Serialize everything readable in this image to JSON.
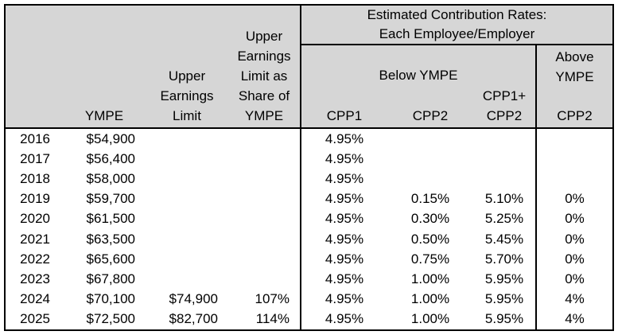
{
  "colors": {
    "header_background": "#d6d6d6",
    "border": "#000000",
    "text": "#000000",
    "row_background": "#ffffff"
  },
  "table": {
    "left_headers": {
      "year": "",
      "ympe": "YMPE",
      "upper_earnings_limit": "Upper\nEarnings\nLimit",
      "uel_share_of_ympe": "Upper\nEarnings\nLimit as\nShare of\nYMPE"
    },
    "rates_title": "Estimated Contribution Rates:\nEach Employee/Employer",
    "below_group_label": "Below YMPE",
    "below_columns": [
      "CPP1",
      "CPP2",
      "CPP1+\nCPP2"
    ],
    "above_group_label": "Above\nYMPE",
    "above_column": "CPP2",
    "rows": [
      {
        "year": "2016",
        "ympe": "$54,900",
        "upper_earnings_limit": "",
        "uel_share_of_ympe": "",
        "cpp1": "4.95%",
        "cpp2": "",
        "cpp1_plus_cpp2": "",
        "above_cpp2": ""
      },
      {
        "year": "2017",
        "ympe": "$56,400",
        "upper_earnings_limit": "",
        "uel_share_of_ympe": "",
        "cpp1": "4.95%",
        "cpp2": "",
        "cpp1_plus_cpp2": "",
        "above_cpp2": ""
      },
      {
        "year": "2018",
        "ympe": "$58,000",
        "upper_earnings_limit": "",
        "uel_share_of_ympe": "",
        "cpp1": "4.95%",
        "cpp2": "",
        "cpp1_plus_cpp2": "",
        "above_cpp2": ""
      },
      {
        "year": "2019",
        "ympe": "$59,700",
        "upper_earnings_limit": "",
        "uel_share_of_ympe": "",
        "cpp1": "4.95%",
        "cpp2": "0.15%",
        "cpp1_plus_cpp2": "5.10%",
        "above_cpp2": "0%"
      },
      {
        "year": "2020",
        "ympe": "$61,500",
        "upper_earnings_limit": "",
        "uel_share_of_ympe": "",
        "cpp1": "4.95%",
        "cpp2": "0.30%",
        "cpp1_plus_cpp2": "5.25%",
        "above_cpp2": "0%"
      },
      {
        "year": "2021",
        "ympe": "$63,500",
        "upper_earnings_limit": "",
        "uel_share_of_ympe": "",
        "cpp1": "4.95%",
        "cpp2": "0.50%",
        "cpp1_plus_cpp2": "5.45%",
        "above_cpp2": "0%"
      },
      {
        "year": "2022",
        "ympe": "$65,600",
        "upper_earnings_limit": "",
        "uel_share_of_ympe": "",
        "cpp1": "4.95%",
        "cpp2": "0.75%",
        "cpp1_plus_cpp2": "5.70%",
        "above_cpp2": "0%"
      },
      {
        "year": "2023",
        "ympe": "$67,800",
        "upper_earnings_limit": "",
        "uel_share_of_ympe": "",
        "cpp1": "4.95%",
        "cpp2": "1.00%",
        "cpp1_plus_cpp2": "5.95%",
        "above_cpp2": "0%"
      },
      {
        "year": "2024",
        "ympe": "$70,100",
        "upper_earnings_limit": "$74,900",
        "uel_share_of_ympe": "107%",
        "cpp1": "4.95%",
        "cpp2": "1.00%",
        "cpp1_plus_cpp2": "5.95%",
        "above_cpp2": "4%"
      },
      {
        "year": "2025",
        "ympe": "$72,500",
        "upper_earnings_limit": "$82,700",
        "uel_share_of_ympe": "114%",
        "cpp1": "4.95%",
        "cpp2": "1.00%",
        "cpp1_plus_cpp2": "5.95%",
        "above_cpp2": "4%"
      }
    ]
  }
}
